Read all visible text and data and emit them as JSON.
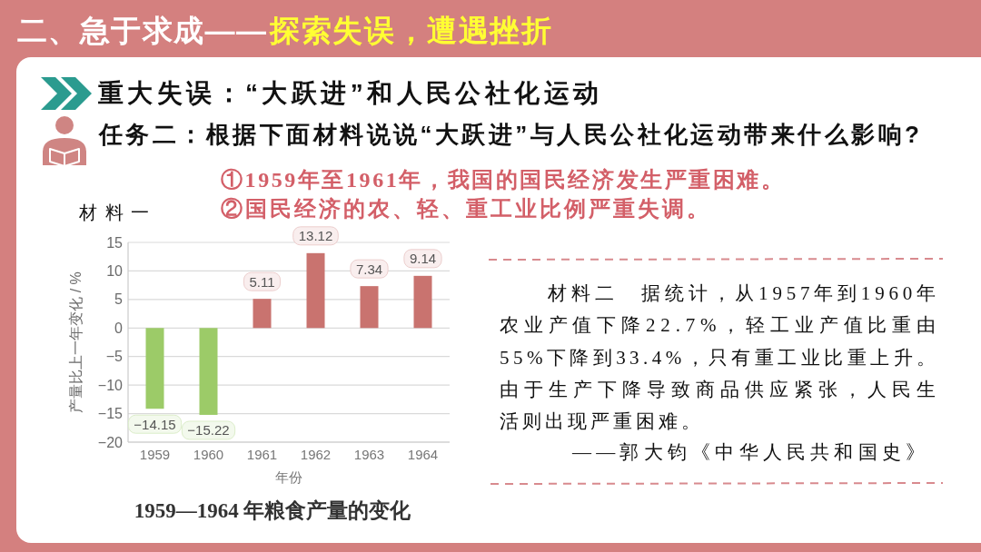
{
  "chart_data": {
    "type": "bar",
    "title": "1959—1964 年粮食产量的变化",
    "xlabel": "年份",
    "ylabel": "产量比上一年变化 / %",
    "categories": [
      "1959",
      "1960",
      "1961",
      "1962",
      "1963",
      "1964"
    ],
    "values": [
      -14.15,
      -15.22,
      5.11,
      13.12,
      7.34,
      9.14
    ],
    "colors": [
      "#9ccb68",
      "#9ccb68",
      "#c9736f",
      "#c9736f",
      "#c9736f",
      "#c9736f"
    ],
    "ylim": [
      -20,
      15
    ],
    "yticks": [
      -20,
      -15,
      -10,
      -5,
      0,
      5,
      10,
      15
    ],
    "grid": "y",
    "data_labels": true,
    "annotations": [
      "二、急于求成——",
      "探索失误，遭遇挫折",
      "重大失误：“大跃进”和人民公社化运动",
      "任务二：根据下面材料说说“大跃进”与人民公社化运动带来什么影响?",
      "①1959年至1961年，我国的国民经济发生严重困难。",
      "②国民经济的农、轻、重工业比例严重失调。",
      "材料一",
      "材料二　据统计，从1957年到1960年农业产值下降22.7%，轻工业产值比重由55%下降到33.4%，只有重工业比重上升。由于生产下降导致商品供应紧张，人民生活则出现严重困难。",
      "——郭大钧《中华人民共和国史》"
    ]
  }
}
